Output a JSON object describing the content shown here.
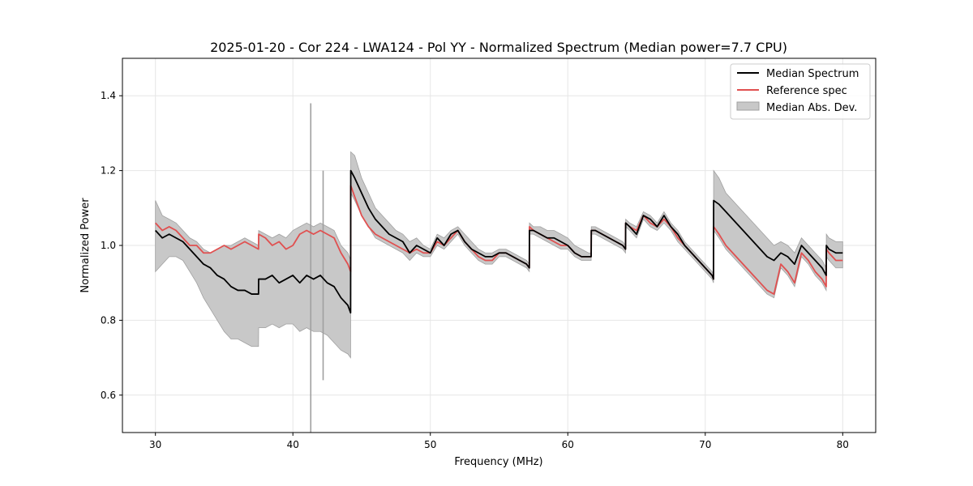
{
  "chart_data": {
    "type": "line",
    "title": "2025-01-20 - Cor 224 - LWA124 - Pol YY - Normalized Spectrum (Median power=7.7 CPU)",
    "xlabel": "Frequency (MHz)",
    "ylabel": "Normalized Power",
    "xlim": [
      27.6,
      82.4
    ],
    "ylim": [
      0.5,
      1.5
    ],
    "xticks": [
      30,
      40,
      50,
      60,
      70,
      80
    ],
    "yticks": [
      0.6,
      0.8,
      1.0,
      1.2,
      1.4
    ],
    "xtick_labels": [
      "30",
      "40",
      "50",
      "60",
      "70",
      "80"
    ],
    "ytick_labels": [
      "0.6",
      "0.8",
      "1.0",
      "1.2",
      "1.4"
    ],
    "grid": true,
    "legend_position": "top-right",
    "legend": {
      "median": "Median Spectrum",
      "reference": "Reference spec",
      "mad": "Median Abs. Dev."
    },
    "colors": {
      "median": "#000000",
      "reference": "#e05050",
      "mad_fill": "#c8c8c8",
      "mad_edge": "#a0a0a0"
    },
    "series": [
      {
        "name": "Median Spectrum",
        "x": [
          30.0,
          30.5,
          31.0,
          31.5,
          32.0,
          32.5,
          33.0,
          33.5,
          34.0,
          34.5,
          35.0,
          35.5,
          36.0,
          36.5,
          37.0,
          37.5,
          37.51,
          38.0,
          38.5,
          39.0,
          39.5,
          40.0,
          40.5,
          41.0,
          41.5,
          42.0,
          42.5,
          43.0,
          43.5,
          44.0,
          44.2,
          44.21,
          44.5,
          45.0,
          45.5,
          46.0,
          46.5,
          47.0,
          47.5,
          48.0,
          48.5,
          49.0,
          49.5,
          50.0,
          50.5,
          51.0,
          51.5,
          52.0,
          52.5,
          53.0,
          53.5,
          54.0,
          54.5,
          55.0,
          55.5,
          56.0,
          56.5,
          57.0,
          57.2,
          57.21,
          57.5,
          58.0,
          58.5,
          59.0,
          59.5,
          60.0,
          60.5,
          61.0,
          61.5,
          61.7,
          61.71,
          62.0,
          62.5,
          63.0,
          63.5,
          64.0,
          64.2,
          64.21,
          64.5,
          65.0,
          65.5,
          66.0,
          66.5,
          67.0,
          67.5,
          68.0,
          68.5,
          69.0,
          69.5,
          70.0,
          70.5,
          70.6,
          70.61,
          71.0,
          71.5,
          72.0,
          72.5,
          73.0,
          73.5,
          74.0,
          74.5,
          75.0,
          75.5,
          76.0,
          76.5,
          77.0,
          77.5,
          78.0,
          78.5,
          78.8,
          78.81,
          79.0,
          79.5,
          80.0
        ],
        "values": [
          1.04,
          1.02,
          1.03,
          1.02,
          1.01,
          0.99,
          0.97,
          0.95,
          0.94,
          0.92,
          0.91,
          0.89,
          0.88,
          0.88,
          0.87,
          0.87,
          0.91,
          0.91,
          0.92,
          0.9,
          0.91,
          0.92,
          0.9,
          0.92,
          0.91,
          0.92,
          0.9,
          0.89,
          0.86,
          0.84,
          0.82,
          1.2,
          1.18,
          1.14,
          1.1,
          1.07,
          1.05,
          1.03,
          1.02,
          1.01,
          0.98,
          1.0,
          0.99,
          0.98,
          1.02,
          1.0,
          1.03,
          1.04,
          1.01,
          0.99,
          0.98,
          0.97,
          0.97,
          0.98,
          0.98,
          0.97,
          0.96,
          0.95,
          0.94,
          1.04,
          1.04,
          1.03,
          1.02,
          1.02,
          1.01,
          1.0,
          0.98,
          0.97,
          0.97,
          0.97,
          1.04,
          1.04,
          1.03,
          1.02,
          1.01,
          1.0,
          0.99,
          1.06,
          1.05,
          1.03,
          1.08,
          1.07,
          1.05,
          1.08,
          1.05,
          1.03,
          1.0,
          0.98,
          0.96,
          0.94,
          0.92,
          0.91,
          1.12,
          1.11,
          1.09,
          1.07,
          1.05,
          1.03,
          1.01,
          0.99,
          0.97,
          0.96,
          0.98,
          0.97,
          0.95,
          1.0,
          0.98,
          0.96,
          0.94,
          0.92,
          1.0,
          0.99,
          0.98,
          0.98
        ]
      },
      {
        "name": "Reference spec",
        "x": [
          30.0,
          30.5,
          31.0,
          31.5,
          32.0,
          32.5,
          33.0,
          33.5,
          34.0,
          34.5,
          35.0,
          35.5,
          36.0,
          36.5,
          37.0,
          37.5,
          37.51,
          38.0,
          38.5,
          39.0,
          39.5,
          40.0,
          40.5,
          41.0,
          41.5,
          42.0,
          42.5,
          43.0,
          43.5,
          44.0,
          44.2,
          44.21,
          44.5,
          45.0,
          45.5,
          46.0,
          46.5,
          47.0,
          47.5,
          48.0,
          48.5,
          49.0,
          49.5,
          50.0,
          50.5,
          51.0,
          51.5,
          52.0,
          52.5,
          53.0,
          53.5,
          54.0,
          54.5,
          55.0,
          55.5,
          56.0,
          56.5,
          57.0,
          57.2,
          57.21,
          57.5,
          58.0,
          58.5,
          59.0,
          59.5,
          60.0,
          60.5,
          61.0,
          61.5,
          61.7,
          61.71,
          62.0,
          62.5,
          63.0,
          63.5,
          64.0,
          64.2,
          64.21,
          64.5,
          65.0,
          65.5,
          66.0,
          66.5,
          67.0,
          67.5,
          68.0,
          68.5,
          69.0,
          69.5,
          70.0,
          70.5,
          70.6,
          70.61,
          71.0,
          71.5,
          72.0,
          72.5,
          73.0,
          73.5,
          74.0,
          74.5,
          75.0,
          75.5,
          76.0,
          76.5,
          77.0,
          77.5,
          78.0,
          78.5,
          78.8,
          78.81,
          79.0,
          79.5,
          80.0
        ],
        "values": [
          1.06,
          1.04,
          1.05,
          1.04,
          1.02,
          1.0,
          1.0,
          0.98,
          0.98,
          0.99,
          1.0,
          0.99,
          1.0,
          1.01,
          1.0,
          0.99,
          1.03,
          1.02,
          1.0,
          1.01,
          0.99,
          1.0,
          1.03,
          1.04,
          1.03,
          1.04,
          1.03,
          1.02,
          0.98,
          0.95,
          0.93,
          1.16,
          1.13,
          1.08,
          1.05,
          1.03,
          1.02,
          1.01,
          1.0,
          0.99,
          0.98,
          0.99,
          0.98,
          0.98,
          1.01,
          1.0,
          1.02,
          1.04,
          1.01,
          0.99,
          0.97,
          0.96,
          0.96,
          0.98,
          0.98,
          0.97,
          0.96,
          0.95,
          0.94,
          1.05,
          1.04,
          1.03,
          1.02,
          1.01,
          1.0,
          1.0,
          0.98,
          0.97,
          0.97,
          0.97,
          1.04,
          1.04,
          1.03,
          1.02,
          1.01,
          1.0,
          0.99,
          1.06,
          1.05,
          1.04,
          1.08,
          1.06,
          1.05,
          1.07,
          1.05,
          1.02,
          1.0,
          0.98,
          0.96,
          0.94,
          0.92,
          0.91,
          1.05,
          1.03,
          1.0,
          0.98,
          0.96,
          0.94,
          0.92,
          0.9,
          0.88,
          0.87,
          0.95,
          0.93,
          0.9,
          0.98,
          0.96,
          0.93,
          0.91,
          0.89,
          0.99,
          0.98,
          0.96,
          0.96
        ]
      },
      {
        "name": "Median Abs. Dev.",
        "x": [
          30.0,
          30.5,
          31.0,
          31.5,
          32.0,
          32.5,
          33.0,
          33.5,
          34.0,
          34.5,
          35.0,
          35.5,
          36.0,
          36.5,
          37.0,
          37.5,
          37.51,
          38.0,
          38.5,
          39.0,
          39.5,
          40.0,
          40.5,
          41.0,
          41.5,
          42.0,
          42.5,
          43.0,
          43.5,
          44.0,
          44.2,
          44.21,
          44.5,
          45.0,
          45.5,
          46.0,
          46.5,
          47.0,
          47.5,
          48.0,
          48.5,
          49.0,
          49.5,
          50.0,
          50.5,
          51.0,
          51.5,
          52.0,
          52.5,
          53.0,
          53.5,
          54.0,
          54.5,
          55.0,
          55.5,
          56.0,
          56.5,
          57.0,
          57.2,
          57.21,
          57.5,
          58.0,
          58.5,
          59.0,
          59.5,
          60.0,
          60.5,
          61.0,
          61.5,
          61.7,
          61.71,
          62.0,
          62.5,
          63.0,
          63.5,
          64.0,
          64.2,
          64.21,
          64.5,
          65.0,
          65.5,
          66.0,
          66.5,
          67.0,
          67.5,
          68.0,
          68.5,
          69.0,
          69.5,
          70.0,
          70.5,
          70.6,
          70.61,
          71.0,
          71.5,
          72.0,
          72.5,
          73.0,
          73.5,
          74.0,
          74.5,
          75.0,
          75.5,
          76.0,
          76.5,
          77.0,
          77.5,
          78.0,
          78.5,
          78.8,
          78.81,
          79.0,
          79.5,
          80.0
        ],
        "upper": [
          1.12,
          1.08,
          1.07,
          1.06,
          1.04,
          1.02,
          1.01,
          0.99,
          0.98,
          0.99,
          1.0,
          1.0,
          1.01,
          1.02,
          1.01,
          1.0,
          1.04,
          1.03,
          1.02,
          1.03,
          1.02,
          1.04,
          1.05,
          1.06,
          1.05,
          1.06,
          1.05,
          1.04,
          1.0,
          0.98,
          0.96,
          1.25,
          1.24,
          1.18,
          1.14,
          1.1,
          1.08,
          1.06,
          1.04,
          1.03,
          1.01,
          1.02,
          1.0,
          0.99,
          1.03,
          1.02,
          1.04,
          1.05,
          1.03,
          1.01,
          0.99,
          0.98,
          0.98,
          0.99,
          0.99,
          0.98,
          0.97,
          0.96,
          0.95,
          1.06,
          1.05,
          1.05,
          1.04,
          1.04,
          1.03,
          1.02,
          1.0,
          0.99,
          0.98,
          0.98,
          1.05,
          1.05,
          1.04,
          1.03,
          1.02,
          1.01,
          1.0,
          1.07,
          1.06,
          1.05,
          1.09,
          1.08,
          1.06,
          1.09,
          1.06,
          1.04,
          1.01,
          0.99,
          0.97,
          0.95,
          0.93,
          0.92,
          1.2,
          1.18,
          1.14,
          1.12,
          1.1,
          1.08,
          1.06,
          1.04,
          1.02,
          1.0,
          1.01,
          1.0,
          0.98,
          1.02,
          1.0,
          0.98,
          0.96,
          0.94,
          1.03,
          1.02,
          1.01,
          1.01
        ],
        "lower": [
          0.93,
          0.95,
          0.97,
          0.97,
          0.96,
          0.93,
          0.9,
          0.86,
          0.83,
          0.8,
          0.77,
          0.75,
          0.75,
          0.74,
          0.73,
          0.73,
          0.78,
          0.78,
          0.79,
          0.78,
          0.79,
          0.79,
          0.77,
          0.78,
          0.77,
          0.77,
          0.76,
          0.74,
          0.72,
          0.71,
          0.7,
          1.14,
          1.12,
          1.08,
          1.05,
          1.02,
          1.01,
          1.0,
          0.99,
          0.98,
          0.96,
          0.98,
          0.97,
          0.97,
          1.0,
          0.99,
          1.01,
          1.03,
          1.0,
          0.98,
          0.96,
          0.95,
          0.95,
          0.97,
          0.97,
          0.96,
          0.95,
          0.94,
          0.93,
          1.03,
          1.03,
          1.02,
          1.01,
          1.0,
          0.99,
          0.99,
          0.97,
          0.96,
          0.96,
          0.96,
          1.03,
          1.03,
          1.02,
          1.01,
          1.0,
          0.99,
          0.98,
          1.05,
          1.04,
          1.02,
          1.07,
          1.05,
          1.04,
          1.06,
          1.04,
          1.01,
          0.99,
          0.97,
          0.95,
          0.93,
          0.91,
          0.9,
          1.04,
          1.02,
          0.99,
          0.97,
          0.95,
          0.93,
          0.91,
          0.89,
          0.87,
          0.86,
          0.94,
          0.92,
          0.89,
          0.97,
          0.95,
          0.92,
          0.9,
          0.88,
          0.97,
          0.96,
          0.94,
          0.94
        ]
      }
    ],
    "spikes": [
      {
        "x": 41.3,
        "low": 0.5,
        "high": 1.38
      },
      {
        "x": 42.2,
        "low": 0.64,
        "high": 1.2
      }
    ]
  }
}
